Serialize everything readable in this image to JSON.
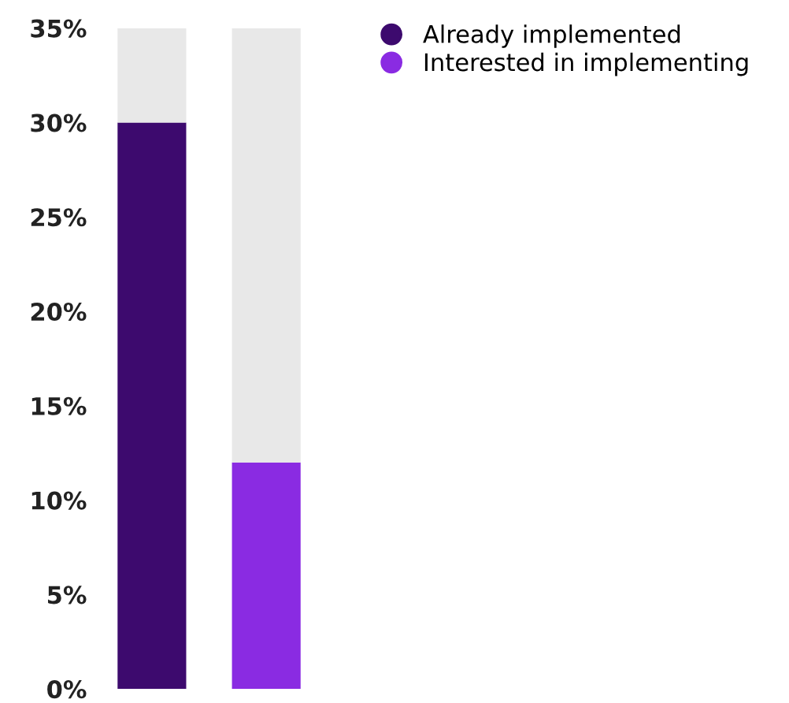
{
  "chart_data": {
    "type": "bar",
    "stacked": true,
    "categories": [
      null,
      null
    ],
    "series": [
      {
        "name": "Already implemented",
        "color": "#3d0a6e",
        "values": [
          30,
          null
        ]
      },
      {
        "name": "Interested in implementing",
        "color": "#8a2be2",
        "values": [
          null,
          12
        ]
      },
      {
        "color": "#e8e8e8",
        "values": [
          5,
          23
        ]
      }
    ],
    "ylim": [
      0,
      35
    ],
    "yticks": [
      {
        "value": 0,
        "label": "0%"
      },
      {
        "value": 5,
        "label": "5%"
      },
      {
        "value": 10,
        "label": "10%"
      },
      {
        "value": 15,
        "label": "15%"
      },
      {
        "value": 20,
        "label": "20%"
      },
      {
        "value": 25,
        "label": "25%"
      },
      {
        "value": 30,
        "label": "30%"
      },
      {
        "value": 35,
        "label": "35%"
      }
    ],
    "grid": false,
    "legend": "top right"
  }
}
